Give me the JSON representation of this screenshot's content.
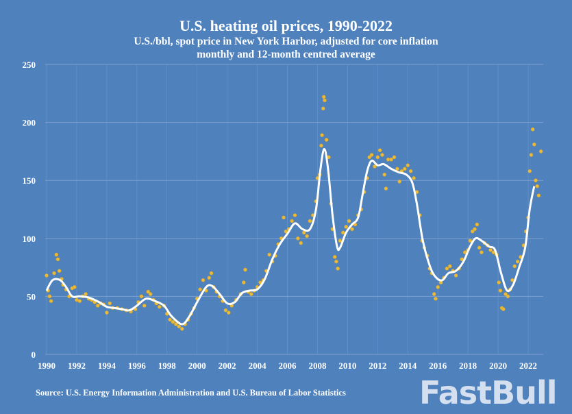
{
  "chart_data": {
    "type": "scatter",
    "title": "U.S. heating oil prices, 1990-2022",
    "subtitle": "U.S./bbl, spot price in New York Harbor, adjusted for core inflation",
    "subtitle2": "monthly and 12-month centred average",
    "source": "Source: U.S. Energy Information Administration and U.S. Bureau of Labor Statistics",
    "xlim": [
      1990,
      2023
    ],
    "ylim": [
      0,
      250
    ],
    "xticks": [
      "1990",
      "1992",
      "1994",
      "1996",
      "1998",
      "2000",
      "2002",
      "2004",
      "2006",
      "2008",
      "2010",
      "2012",
      "2014",
      "2016",
      "2018",
      "2020",
      "2022"
    ],
    "yticks": [
      "0",
      "50",
      "100",
      "150",
      "200",
      "250"
    ],
    "grid": true,
    "colors": {
      "background": "#4f81bd",
      "points": "#e8b93a",
      "line": "#ffffff",
      "grid": "#7da0cf"
    },
    "series": [
      {
        "type": "line",
        "values": [
          [
            1990.0,
            55
          ],
          [
            1990.4,
            64
          ],
          [
            1990.9,
            64
          ],
          [
            1991.3,
            58
          ],
          [
            1991.7,
            50
          ],
          [
            1992.2,
            50
          ],
          [
            1992.8,
            49
          ],
          [
            1993.5,
            45
          ],
          [
            1994.0,
            41
          ],
          [
            1994.5,
            40
          ],
          [
            1995.0,
            39
          ],
          [
            1995.5,
            38
          ],
          [
            1996.0,
            42
          ],
          [
            1996.6,
            48
          ],
          [
            1997.2,
            46
          ],
          [
            1997.8,
            42
          ],
          [
            1998.3,
            33
          ],
          [
            1999.0,
            26
          ],
          [
            1999.5,
            33
          ],
          [
            2000.0,
            45
          ],
          [
            2000.6,
            58
          ],
          [
            2001.0,
            59
          ],
          [
            2001.5,
            52
          ],
          [
            2002.0,
            44
          ],
          [
            2002.5,
            45
          ],
          [
            2003.0,
            53
          ],
          [
            2003.5,
            55
          ],
          [
            2004.0,
            56
          ],
          [
            2004.5,
            65
          ],
          [
            2005.0,
            82
          ],
          [
            2005.5,
            95
          ],
          [
            2006.0,
            104
          ],
          [
            2006.5,
            113
          ],
          [
            2007.0,
            108
          ],
          [
            2007.5,
            108
          ],
          [
            2007.9,
            125
          ],
          [
            2008.2,
            160
          ],
          [
            2008.45,
            177
          ],
          [
            2008.7,
            160
          ],
          [
            2009.0,
            120
          ],
          [
            2009.3,
            93
          ],
          [
            2009.5,
            92
          ],
          [
            2009.9,
            105
          ],
          [
            2010.3,
            112
          ],
          [
            2010.7,
            118
          ],
          [
            2011.0,
            138
          ],
          [
            2011.3,
            158
          ],
          [
            2011.6,
            167
          ],
          [
            2012.0,
            163
          ],
          [
            2012.4,
            164
          ],
          [
            2012.9,
            160
          ],
          [
            2013.4,
            157
          ],
          [
            2013.9,
            155
          ],
          [
            2014.3,
            148
          ],
          [
            2014.6,
            130
          ],
          [
            2015.0,
            98
          ],
          [
            2015.5,
            75
          ],
          [
            2015.9,
            66
          ],
          [
            2016.3,
            64
          ],
          [
            2016.7,
            70
          ],
          [
            2017.2,
            72
          ],
          [
            2017.7,
            80
          ],
          [
            2018.1,
            92
          ],
          [
            2018.5,
            100
          ],
          [
            2018.9,
            98
          ],
          [
            2019.4,
            93
          ],
          [
            2019.8,
            90
          ],
          [
            2020.2,
            70
          ],
          [
            2020.6,
            55
          ],
          [
            2021.0,
            60
          ],
          [
            2021.4,
            75
          ],
          [
            2021.8,
            92
          ],
          [
            2022.1,
            125
          ],
          [
            2022.4,
            145
          ]
        ]
      },
      {
        "type": "scatter",
        "values": [
          [
            1990.0,
            68
          ],
          [
            1990.1,
            55
          ],
          [
            1990.2,
            50
          ],
          [
            1990.3,
            46
          ],
          [
            1990.5,
            70
          ],
          [
            1990.65,
            86
          ],
          [
            1990.75,
            82
          ],
          [
            1990.85,
            72
          ],
          [
            1991.0,
            65
          ],
          [
            1991.1,
            60
          ],
          [
            1991.3,
            56
          ],
          [
            1991.5,
            50
          ],
          [
            1991.7,
            57
          ],
          [
            1991.85,
            58
          ],
          [
            1992.0,
            47
          ],
          [
            1992.2,
            46
          ],
          [
            1992.4,
            50
          ],
          [
            1992.6,
            52
          ],
          [
            1992.8,
            48
          ],
          [
            1993.0,
            47
          ],
          [
            1993.2,
            45
          ],
          [
            1993.4,
            42
          ],
          [
            1993.6,
            44
          ],
          [
            1993.8,
            43
          ],
          [
            1994.0,
            36
          ],
          [
            1994.2,
            44
          ],
          [
            1994.4,
            40
          ],
          [
            1994.7,
            40
          ],
          [
            1995.0,
            39
          ],
          [
            1995.3,
            38
          ],
          [
            1995.6,
            37
          ],
          [
            1995.9,
            39
          ],
          [
            1996.1,
            45
          ],
          [
            1996.3,
            50
          ],
          [
            1996.5,
            42
          ],
          [
            1996.75,
            54
          ],
          [
            1996.9,
            52
          ],
          [
            1997.1,
            47
          ],
          [
            1997.3,
            44
          ],
          [
            1997.5,
            41
          ],
          [
            1997.8,
            42
          ],
          [
            1998.0,
            35
          ],
          [
            1998.2,
            30
          ],
          [
            1998.4,
            28
          ],
          [
            1998.6,
            26
          ],
          [
            1998.8,
            24
          ],
          [
            1999.0,
            22
          ],
          [
            1999.2,
            26
          ],
          [
            1999.4,
            30
          ],
          [
            1999.6,
            35
          ],
          [
            1999.8,
            40
          ],
          [
            2000.0,
            48
          ],
          [
            2000.2,
            56
          ],
          [
            2000.4,
            64
          ],
          [
            2000.6,
            55
          ],
          [
            2000.8,
            66
          ],
          [
            2000.95,
            70
          ],
          [
            2001.1,
            58
          ],
          [
            2001.3,
            54
          ],
          [
            2001.5,
            50
          ],
          [
            2001.7,
            46
          ],
          [
            2001.9,
            38
          ],
          [
            2002.1,
            36
          ],
          [
            2002.3,
            42
          ],
          [
            2002.6,
            47
          ],
          [
            2002.9,
            52
          ],
          [
            2003.1,
            62
          ],
          [
            2003.2,
            73
          ],
          [
            2003.4,
            54
          ],
          [
            2003.6,
            52
          ],
          [
            2003.8,
            55
          ],
          [
            2004.0,
            58
          ],
          [
            2004.2,
            62
          ],
          [
            2004.4,
            64
          ],
          [
            2004.6,
            72
          ],
          [
            2004.8,
            86
          ],
          [
            2005.0,
            80
          ],
          [
            2005.2,
            85
          ],
          [
            2005.4,
            95
          ],
          [
            2005.6,
            100
          ],
          [
            2005.75,
            118
          ],
          [
            2005.9,
            106
          ],
          [
            2006.1,
            108
          ],
          [
            2006.3,
            115
          ],
          [
            2006.5,
            120
          ],
          [
            2006.7,
            100
          ],
          [
            2006.9,
            96
          ],
          [
            2007.1,
            105
          ],
          [
            2007.3,
            102
          ],
          [
            2007.5,
            115
          ],
          [
            2007.7,
            120
          ],
          [
            2007.9,
            132
          ],
          [
            2008.0,
            152
          ],
          [
            2008.15,
            155
          ],
          [
            2008.25,
            180
          ],
          [
            2008.3,
            189
          ],
          [
            2008.38,
            212
          ],
          [
            2008.42,
            222
          ],
          [
            2008.48,
            219
          ],
          [
            2008.6,
            185
          ],
          [
            2008.75,
            170
          ],
          [
            2008.9,
            130
          ],
          [
            2009.0,
            108
          ],
          [
            2009.15,
            84
          ],
          [
            2009.25,
            80
          ],
          [
            2009.35,
            74
          ],
          [
            2009.5,
            98
          ],
          [
            2009.7,
            105
          ],
          [
            2009.9,
            110
          ],
          [
            2010.1,
            115
          ],
          [
            2010.3,
            108
          ],
          [
            2010.5,
            112
          ],
          [
            2010.7,
            120
          ],
          [
            2010.9,
            125
          ],
          [
            2011.1,
            140
          ],
          [
            2011.3,
            152
          ],
          [
            2011.45,
            170
          ],
          [
            2011.6,
            172
          ],
          [
            2011.8,
            162
          ],
          [
            2012.0,
            170
          ],
          [
            2012.15,
            176
          ],
          [
            2012.3,
            172
          ],
          [
            2012.45,
            155
          ],
          [
            2012.55,
            143
          ],
          [
            2012.7,
            168
          ],
          [
            2012.9,
            168
          ],
          [
            2013.1,
            170
          ],
          [
            2013.3,
            160
          ],
          [
            2013.45,
            149
          ],
          [
            2013.6,
            158
          ],
          [
            2013.8,
            160
          ],
          [
            2014.0,
            163
          ],
          [
            2014.2,
            158
          ],
          [
            2014.4,
            152
          ],
          [
            2014.6,
            140
          ],
          [
            2014.8,
            120
          ],
          [
            2014.95,
            98
          ],
          [
            2015.1,
            92
          ],
          [
            2015.3,
            85
          ],
          [
            2015.45,
            74
          ],
          [
            2015.6,
            70
          ],
          [
            2015.75,
            52
          ],
          [
            2015.85,
            48
          ],
          [
            2016.0,
            58
          ],
          [
            2016.2,
            62
          ],
          [
            2016.4,
            66
          ],
          [
            2016.6,
            74
          ],
          [
            2016.8,
            76
          ],
          [
            2017.0,
            72
          ],
          [
            2017.2,
            68
          ],
          [
            2017.4,
            74
          ],
          [
            2017.6,
            82
          ],
          [
            2017.8,
            88
          ],
          [
            2018.0,
            90
          ],
          [
            2018.15,
            98
          ],
          [
            2018.3,
            106
          ],
          [
            2018.45,
            108
          ],
          [
            2018.6,
            112
          ],
          [
            2018.75,
            92
          ],
          [
            2018.9,
            88
          ],
          [
            2019.1,
            96
          ],
          [
            2019.3,
            94
          ],
          [
            2019.5,
            90
          ],
          [
            2019.7,
            88
          ],
          [
            2019.9,
            86
          ],
          [
            2020.05,
            62
          ],
          [
            2020.15,
            55
          ],
          [
            2020.25,
            40
          ],
          [
            2020.35,
            39
          ],
          [
            2020.5,
            52
          ],
          [
            2020.65,
            50
          ],
          [
            2020.8,
            56
          ],
          [
            2020.95,
            64
          ],
          [
            2021.1,
            76
          ],
          [
            2021.3,
            80
          ],
          [
            2021.5,
            84
          ],
          [
            2021.7,
            94
          ],
          [
            2021.85,
            106
          ],
          [
            2022.0,
            118
          ],
          [
            2022.1,
            158
          ],
          [
            2022.2,
            172
          ],
          [
            2022.3,
            194
          ],
          [
            2022.4,
            181
          ],
          [
            2022.5,
            150
          ],
          [
            2022.6,
            145
          ],
          [
            2022.7,
            137
          ],
          [
            2022.85,
            175
          ]
        ]
      }
    ]
  }
}
